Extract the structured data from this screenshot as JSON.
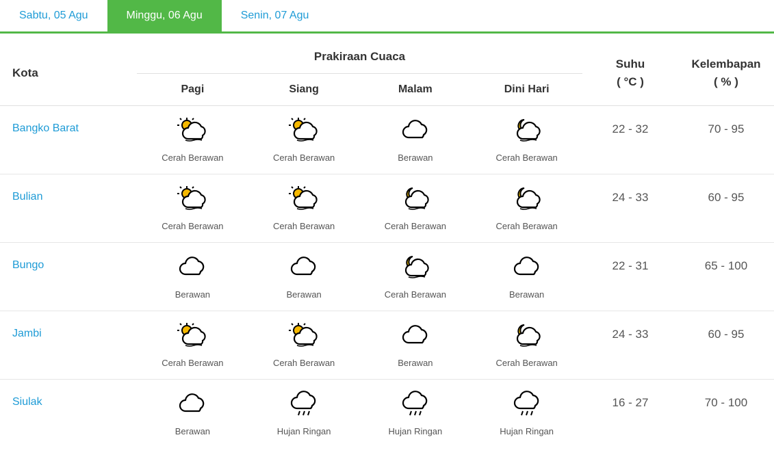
{
  "tabs": [
    {
      "label": "Sabtu, 05 Agu",
      "active": false
    },
    {
      "label": "Minggu, 06 Agu",
      "active": true
    },
    {
      "label": "Senin, 07 Agu",
      "active": false
    }
  ],
  "headers": {
    "city": "Kota",
    "forecast": "Prakiraan Cuaca",
    "temp": "Suhu",
    "temp_unit": "( °C )",
    "humidity": "Kelembapan",
    "humidity_unit": "( % )",
    "times": [
      "Pagi",
      "Siang",
      "Malam",
      "Dini Hari"
    ]
  },
  "icon_types": {
    "sun_cloud": "sun_cloud",
    "moon_cloud": "moon_cloud",
    "cloud": "cloud",
    "rain": "rain"
  },
  "colors": {
    "accent_green": "#52b847",
    "link_blue": "#1e9bd6",
    "text": "#333333",
    "muted": "#555555",
    "border": "#e0e0e0",
    "sun": "#f5b800",
    "moon": "#f5c400",
    "cloud_stroke": "#000000",
    "cloud_fill": "#ffffff"
  },
  "rows": [
    {
      "city": "Bangko Barat",
      "forecast": [
        {
          "icon": "sun_cloud",
          "label": "Cerah Berawan"
        },
        {
          "icon": "sun_cloud",
          "label": "Cerah Berawan"
        },
        {
          "icon": "cloud",
          "label": "Berawan"
        },
        {
          "icon": "moon_cloud",
          "label": "Cerah Berawan"
        }
      ],
      "temp": "22 - 32",
      "humidity": "70 - 95"
    },
    {
      "city": "Bulian",
      "forecast": [
        {
          "icon": "sun_cloud",
          "label": "Cerah Berawan"
        },
        {
          "icon": "sun_cloud",
          "label": "Cerah Berawan"
        },
        {
          "icon": "moon_cloud",
          "label": "Cerah Berawan"
        },
        {
          "icon": "moon_cloud",
          "label": "Cerah Berawan"
        }
      ],
      "temp": "24 - 33",
      "humidity": "60 - 95"
    },
    {
      "city": "Bungo",
      "forecast": [
        {
          "icon": "cloud",
          "label": "Berawan"
        },
        {
          "icon": "cloud",
          "label": "Berawan"
        },
        {
          "icon": "moon_cloud",
          "label": "Cerah Berawan"
        },
        {
          "icon": "cloud",
          "label": "Berawan"
        }
      ],
      "temp": "22 - 31",
      "humidity": "65 - 100"
    },
    {
      "city": "Jambi",
      "forecast": [
        {
          "icon": "sun_cloud",
          "label": "Cerah Berawan"
        },
        {
          "icon": "sun_cloud",
          "label": "Cerah Berawan"
        },
        {
          "icon": "cloud",
          "label": "Berawan"
        },
        {
          "icon": "moon_cloud",
          "label": "Cerah Berawan"
        }
      ],
      "temp": "24 - 33",
      "humidity": "60 - 95"
    },
    {
      "city": "Siulak",
      "forecast": [
        {
          "icon": "cloud",
          "label": "Berawan"
        },
        {
          "icon": "rain",
          "label": "Hujan Ringan"
        },
        {
          "icon": "rain",
          "label": "Hujan Ringan"
        },
        {
          "icon": "rain",
          "label": "Hujan Ringan"
        }
      ],
      "temp": "16 - 27",
      "humidity": "70 - 100"
    }
  ]
}
